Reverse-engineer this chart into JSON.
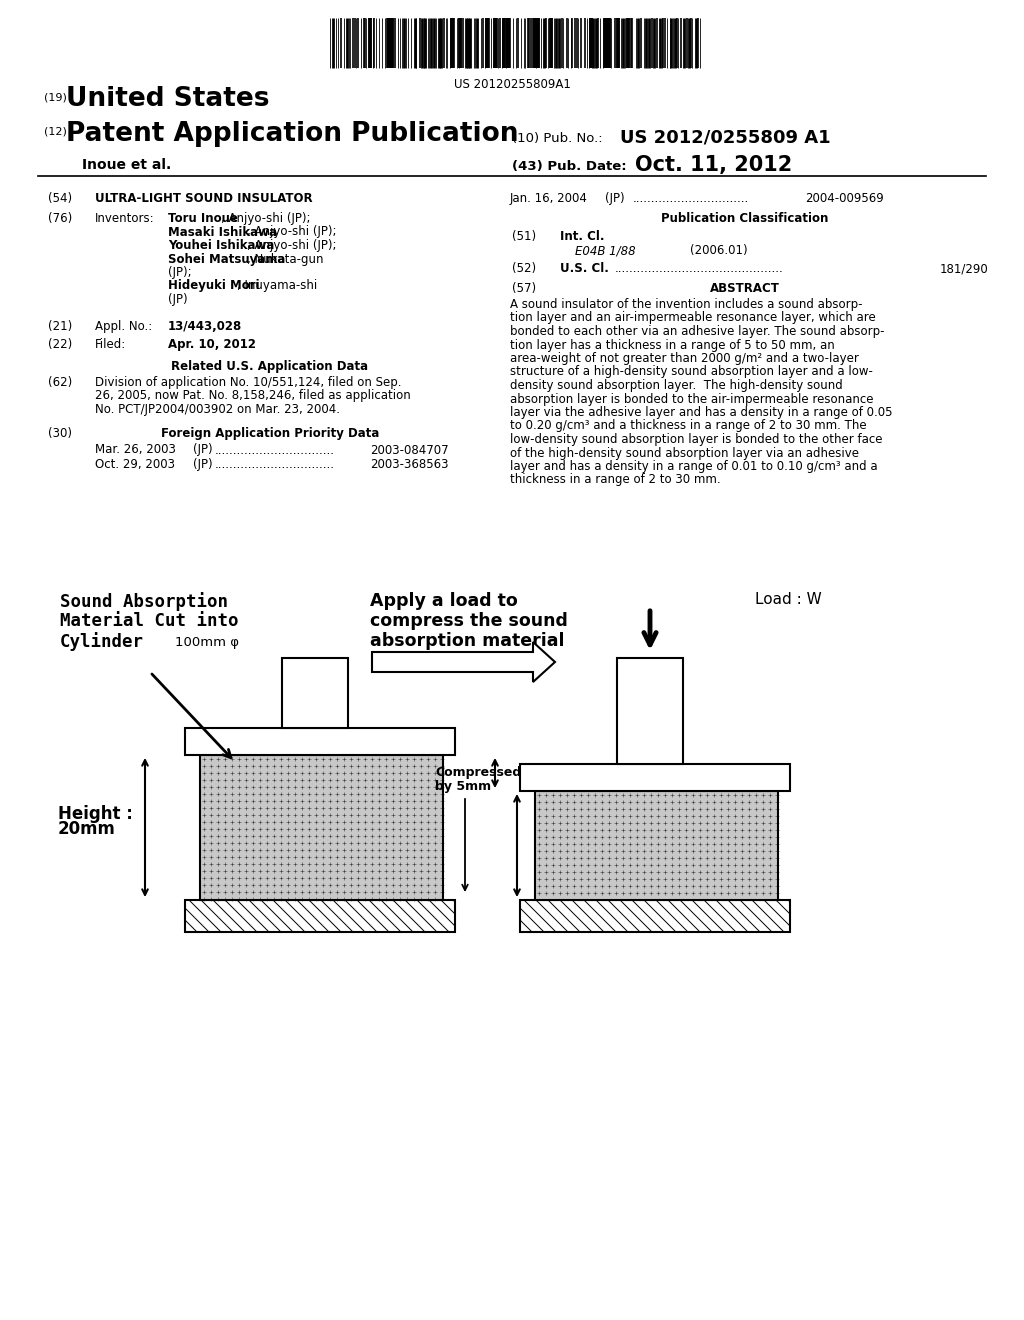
{
  "bg_color": "#ffffff",
  "barcode_text": "US 20120255809A1",
  "header_19": "(19)",
  "header_19_text": "United States",
  "header_12": "(12)",
  "header_12_text": "Patent Application Publication",
  "header_10": "(10) Pub. No.:",
  "header_10_val": "US 2012/0255809 A1",
  "authors": "Inoue et al.",
  "header_43": "(43) Pub. Date:",
  "header_43_val": "Oct. 11, 2012",
  "field_54_label": "(54)",
  "field_54_text": "ULTRA-LIGHT SOUND INSULATOR",
  "field_76_label": "(76)",
  "field_76_title": "Inventors:",
  "field_21_label": "(21)",
  "field_21_title": "Appl. No.:",
  "field_21_text": "13/443,028",
  "field_22_label": "(22)",
  "field_22_title": "Filed:",
  "field_22_text": "Apr. 10, 2012",
  "related_title": "Related U.S. Application Data",
  "field_62_label": "(62)",
  "field_62_lines": [
    "Division of application No. 10/551,124, filed on Sep.",
    "26, 2005, now Pat. No. 8,158,246, filed as application",
    "No. PCT/JP2004/003902 on Mar. 23, 2004."
  ],
  "field_30_label": "(30)",
  "field_30_title": "Foreign Application Priority Data",
  "priority1_date": "Mar. 26, 2003",
  "priority1_country": "(JP)",
  "priority1_num": "2003-084707",
  "priority2_date": "Oct. 29, 2003",
  "priority2_country": "(JP)",
  "priority2_num": "2003-368563",
  "right_date": "Jan. 16, 2004",
  "right_country": "(JP)",
  "right_num": "2004-009569",
  "pub_class_title": "Publication Classification",
  "field_51_label": "(51)",
  "field_51_title": "Int. Cl.",
  "field_51_class": "E04B 1/88",
  "field_51_year": "(2006.01)",
  "field_52_label": "(52)",
  "field_52_title": "U.S. Cl.",
  "field_52_num": "181/290",
  "field_57_label": "(57)",
  "field_57_title": "ABSTRACT",
  "abstract_lines": [
    "A sound insulator of the invention includes a sound absorp-",
    "tion layer and an air-impermeable resonance layer, which are",
    "bonded to each other via an adhesive layer. The sound absorp-",
    "tion layer has a thickness in a range of 5 to 50 mm, an",
    "area-weight of not greater than 2000 g/m² and a two-layer",
    "structure of a high-density sound absorption layer and a low-",
    "density sound absorption layer.  The high-density sound",
    "absorption layer is bonded to the air-impermeable resonance",
    "layer via the adhesive layer and has a density in a range of 0.05",
    "to 0.20 g/cm³ and a thickness in a range of 2 to 30 mm. The",
    "low-density sound absorption layer is bonded to the other face",
    "of the high-density sound absorption layer via an adhesive",
    "layer and has a density in a range of 0.01 to 0.10 g/cm³ and a",
    "thickness in a range of 2 to 30 mm."
  ],
  "diag_label1_line1": "Sound Absorption",
  "diag_label1_line2": "Material Cut into",
  "diag_label1_line3": "Cylinder",
  "diag_label1_size": "100mm φ",
  "diag_label2_line1": "Apply a load to",
  "diag_label2_line2": "compress the sound",
  "diag_label2_line3": "absorption material",
  "diag_load_label": "Load : W",
  "diag_compressed_l1": "Compressed",
  "diag_compressed_l2": "by 5mm",
  "diag_height_l1": "Height :",
  "diag_height_l2": "20mm"
}
